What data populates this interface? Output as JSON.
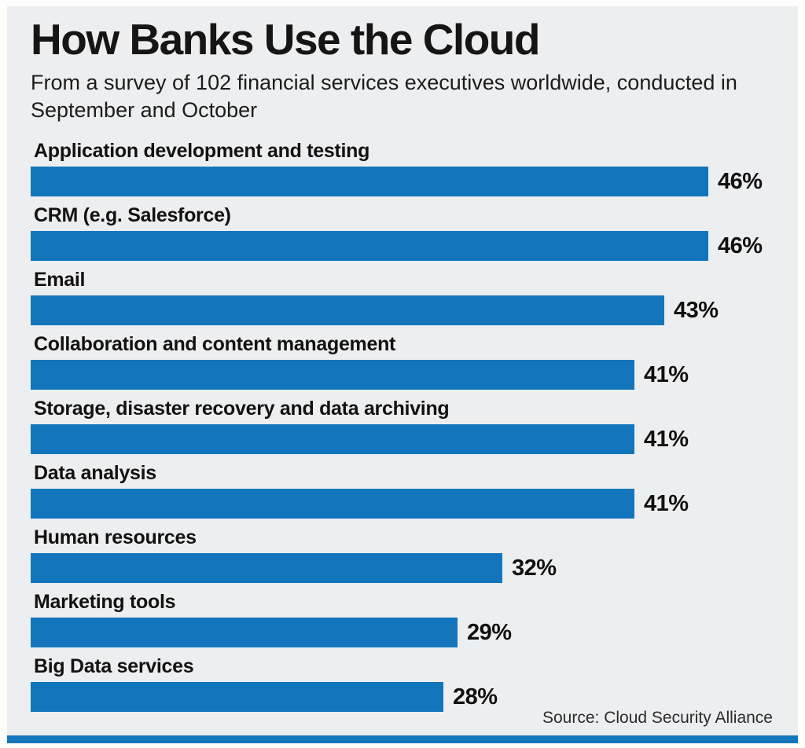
{
  "header": {
    "title": "How Banks Use the Cloud",
    "subtitle": "From a survey of 102 financial services executives worldwide, conducted in September and October"
  },
  "footer": {
    "source": "Source: Cloud Security Alliance"
  },
  "colors": {
    "bar": "#1376bd",
    "background": "#eceef0",
    "strip": "#1376bd"
  },
  "chart_data": {
    "type": "bar",
    "orientation": "horizontal",
    "title": "How Banks Use the Cloud",
    "subtitle": "From a survey of 102 financial services executives worldwide, conducted in September and October",
    "categories": [
      "Application development and testing",
      "CRM (e.g. Salesforce)",
      "Email",
      "Collaboration and content management",
      "Storage, disaster recovery and data archiving",
      "Data analysis",
      "Human resources",
      "Marketing tools",
      "Big Data services"
    ],
    "values": [
      46,
      46,
      43,
      41,
      41,
      41,
      32,
      29,
      28
    ],
    "value_suffix": "%",
    "xlim": [
      0,
      46
    ],
    "value_labels": [
      "46%",
      "46%",
      "43%",
      "41%",
      "41%",
      "41%",
      "32%",
      "29%",
      "28%"
    ],
    "legend": "none",
    "grid": false,
    "source": "Source: Cloud Security Alliance",
    "bar_color": "#1376bd"
  }
}
